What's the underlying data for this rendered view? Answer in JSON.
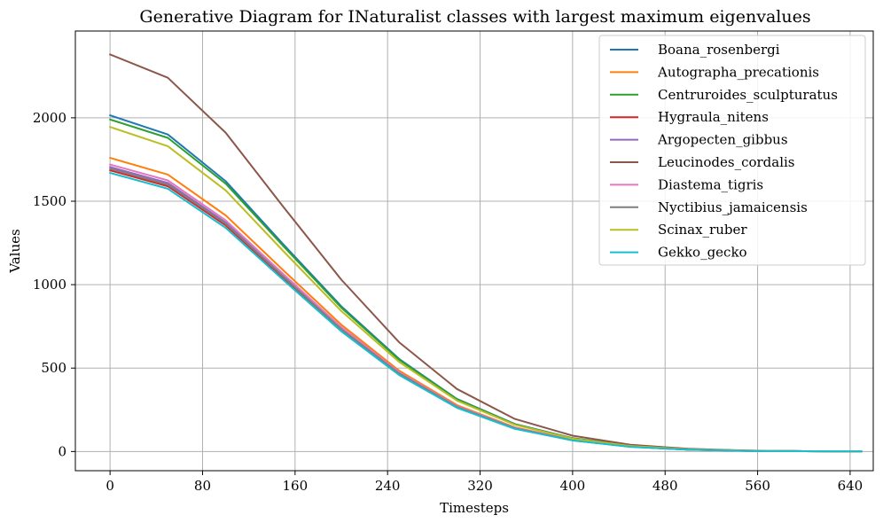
{
  "chart_data": {
    "type": "line",
    "title": "Generative Diagram for INaturalist classes with largest maximum eigenvalues",
    "xlabel": "Timesteps",
    "ylabel": "Values",
    "xlim": [
      -30,
      660
    ],
    "ylim": [
      -115,
      2520
    ],
    "xticks": [
      0,
      80,
      160,
      240,
      320,
      400,
      480,
      560,
      640
    ],
    "yticks": [
      0,
      500,
      1000,
      1500,
      2000
    ],
    "grid": true,
    "legend_position": "top-right",
    "x": [
      0,
      50,
      100,
      150,
      200,
      250,
      300,
      350,
      400,
      450,
      500,
      550,
      600,
      650
    ],
    "series": [
      {
        "name": "Boana_rosenbergi",
        "color": "#1f77b4",
        "values": [
          2015,
          1900,
          1620,
          1240,
          870,
          555,
          315,
          165,
          80,
          35,
          13,
          5,
          2,
          1
        ]
      },
      {
        "name": "Autographa_precationis",
        "color": "#ff7f0e",
        "values": [
          1760,
          1660,
          1415,
          1085,
          760,
          485,
          278,
          145,
          70,
          30,
          12,
          4,
          2,
          1
        ]
      },
      {
        "name": "Centruroides_sculpturatus",
        "color": "#2ca02c",
        "values": [
          1990,
          1880,
          1605,
          1230,
          862,
          550,
          312,
          163,
          79,
          34,
          13,
          5,
          2,
          1
        ]
      },
      {
        "name": "Hygraula_nitens",
        "color": "#d62728",
        "values": [
          1685,
          1590,
          1355,
          1040,
          728,
          465,
          265,
          138,
          67,
          29,
          11,
          4,
          2,
          1
        ]
      },
      {
        "name": "Argopecten_gibbus",
        "color": "#9467bd",
        "values": [
          1705,
          1610,
          1372,
          1052,
          738,
          470,
          268,
          140,
          68,
          29,
          11,
          4,
          2,
          1
        ]
      },
      {
        "name": "Leucinodes_cordalis",
        "color": "#8c564b",
        "values": [
          2380,
          2240,
          1910,
          1465,
          1030,
          655,
          375,
          195,
          95,
          40,
          16,
          6,
          2,
          1
        ]
      },
      {
        "name": "Diastema_tigris",
        "color": "#e377c2",
        "values": [
          1720,
          1625,
          1385,
          1062,
          745,
          475,
          272,
          142,
          69,
          30,
          11,
          4,
          2,
          1
        ]
      },
      {
        "name": "Nyctibius_jamaicensis",
        "color": "#7f7f7f",
        "values": [
          1695,
          1600,
          1365,
          1046,
          733,
          468,
          267,
          139,
          67,
          29,
          11,
          4,
          2,
          1
        ]
      },
      {
        "name": "Scinax_ruber",
        "color": "#bcbd22",
        "values": [
          1945,
          1830,
          1565,
          1200,
          842,
          537,
          305,
          160,
          77,
          33,
          13,
          5,
          2,
          1
        ]
      },
      {
        "name": "Gekko_gecko",
        "color": "#17becf",
        "values": [
          1670,
          1575,
          1340,
          1027,
          720,
          458,
          262,
          136,
          66,
          28,
          11,
          4,
          2,
          1
        ]
      }
    ]
  }
}
